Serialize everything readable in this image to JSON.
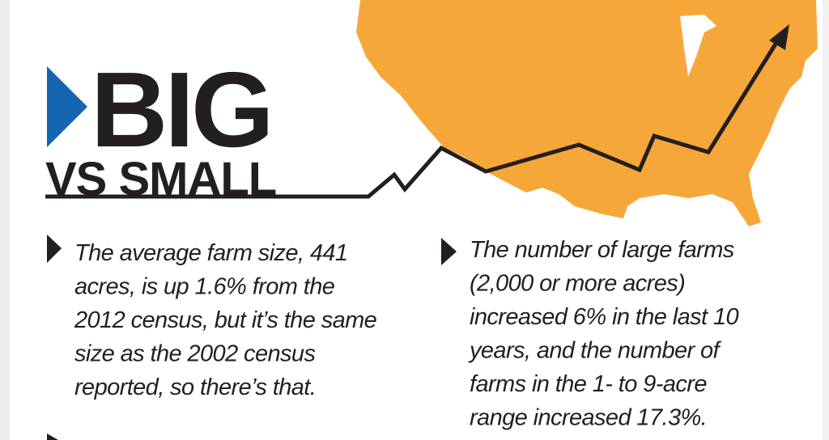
{
  "title": {
    "main": "BIG",
    "sub": "VS SMALL"
  },
  "bullets": [
    {
      "lines": [
        "The average farm size, 441",
        "acres, is up 1.6% from the",
        "2012 census, but it’s the same",
        "size as the 2002 census",
        "reported, so there’s that."
      ]
    },
    {
      "lines": [
        "The number of large farms",
        "(2,000 or more acres)",
        "increased 6% in the last 10",
        "years, and the number of",
        "farms in the 1- to 9-acre",
        "range increased 17.3%."
      ]
    }
  ]
}
